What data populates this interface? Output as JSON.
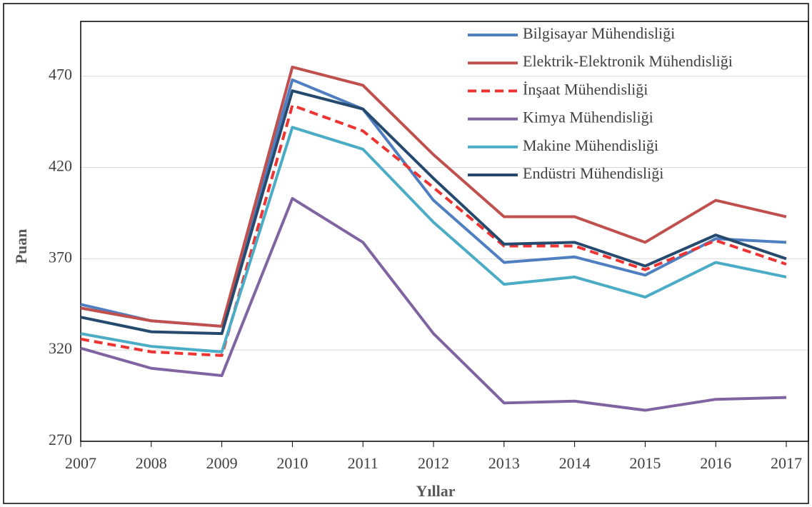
{
  "chart_data": {
    "type": "line",
    "x_label": "Yıllar",
    "y_label": "Puan",
    "x": [
      2007,
      2008,
      2009,
      2010,
      2011,
      2012,
      2013,
      2014,
      2015,
      2016,
      2017
    ],
    "xlim": [
      2007,
      2017
    ],
    "xticks": [
      2007,
      2008,
      2009,
      2010,
      2011,
      2012,
      2013,
      2014,
      2015,
      2016,
      2017
    ],
    "ylim": [
      270,
      500
    ],
    "yticks": [
      270,
      320,
      370,
      420,
      470
    ],
    "grid": true,
    "legend": "upper right",
    "series": [
      {
        "name": "Bilgisayar Mühendisliği",
        "color": "#4f7fc0",
        "dash": false,
        "values": [
          345,
          336,
          333,
          468,
          452,
          402,
          368,
          371,
          361,
          381,
          379
        ]
      },
      {
        "name": "Elektrik-Elektronik Mühendisliği",
        "color": "#c0504d",
        "dash": false,
        "values": [
          343,
          336,
          333,
          475,
          465,
          427,
          393,
          393,
          379,
          402,
          393
        ]
      },
      {
        "name": "İnşaat Mühendisliği",
        "color": "#ee3333",
        "dash": true,
        "values": [
          326,
          319,
          317,
          454,
          440,
          409,
          377,
          377,
          364,
          380,
          367
        ]
      },
      {
        "name": "Kimya Mühendisliği",
        "color": "#8064a2",
        "dash": false,
        "values": [
          321,
          310,
          306,
          403,
          379,
          329,
          291,
          292,
          287,
          293,
          294
        ]
      },
      {
        "name": "Makine Mühendisliği",
        "color": "#4bacc6",
        "dash": false,
        "values": [
          329,
          322,
          319,
          442,
          430,
          390,
          356,
          360,
          349,
          368,
          360
        ]
      },
      {
        "name": "Endüstri Mühendisliği",
        "color": "#254a6e",
        "dash": false,
        "values": [
          338,
          330,
          329,
          462,
          452,
          414,
          378,
          379,
          366,
          383,
          370
        ]
      }
    ]
  }
}
